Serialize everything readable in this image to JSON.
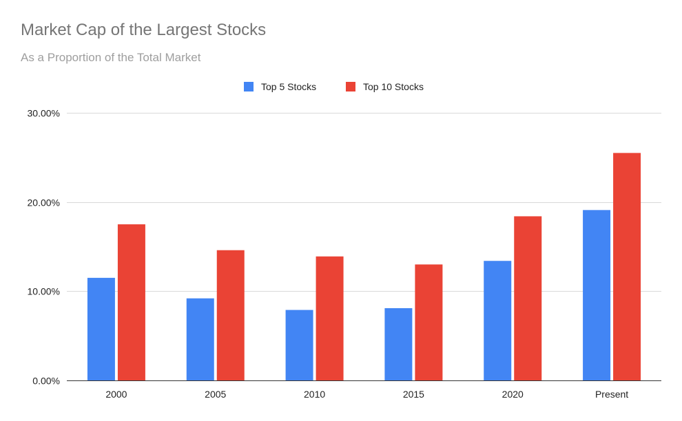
{
  "chart_data": {
    "type": "bar",
    "title": "Market Cap of the Largest Stocks",
    "subtitle": "As a Proportion of the Total Market",
    "categories": [
      "2000",
      "2005",
      "2010",
      "2015",
      "2020",
      "Present"
    ],
    "series": [
      {
        "name": "Top 5 Stocks",
        "color": "#4285f4",
        "values": [
          11.5,
          9.2,
          7.9,
          8.1,
          13.4,
          19.1
        ]
      },
      {
        "name": "Top 10 Stocks",
        "color": "#ea4335",
        "values": [
          17.5,
          14.6,
          13.9,
          13.0,
          18.4,
          25.5
        ]
      }
    ],
    "ylim": [
      0,
      30
    ],
    "yticks": [
      0,
      10,
      20,
      30
    ],
    "ytick_labels": [
      "0.00%",
      "10.00%",
      "20.00%",
      "30.00%"
    ],
    "legend_position": "top-center",
    "grid": true
  }
}
